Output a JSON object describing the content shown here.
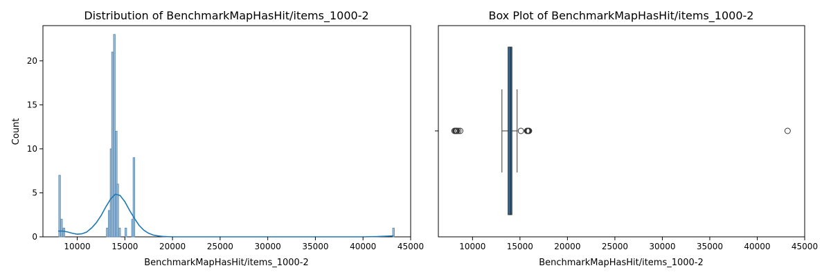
{
  "chart_data": [
    {
      "type": "bar",
      "title": "Distribution of BenchmarkMapHasHit/items_1000-2",
      "xlabel": "BenchmarkMapHasHit/items_1000-2",
      "ylabel": "Count",
      "xlim": [
        6400,
        45000
      ],
      "ylim": [
        0,
        24
      ],
      "xticks": [
        "10000",
        "15000",
        "20000",
        "25000",
        "30000",
        "35000",
        "40000",
        "45000"
      ],
      "yticks": [
        "0",
        "5",
        "10",
        "15",
        "20"
      ],
      "bar_color": "#9bbcd6",
      "bar_edge_color": "#5a88b0",
      "kde_color": "#1f77b4",
      "bars": [
        {
          "x": 8150,
          "count": 7
        },
        {
          "x": 8350,
          "count": 2
        },
        {
          "x": 8600,
          "count": 1
        },
        {
          "x": 13150,
          "count": 1
        },
        {
          "x": 13350,
          "count": 3
        },
        {
          "x": 13550,
          "count": 10
        },
        {
          "x": 13700,
          "count": 21
        },
        {
          "x": 13900,
          "count": 23
        },
        {
          "x": 14100,
          "count": 12
        },
        {
          "x": 14250,
          "count": 6
        },
        {
          "x": 14450,
          "count": 1
        },
        {
          "x": 15100,
          "count": 1
        },
        {
          "x": 15800,
          "count": 2
        },
        {
          "x": 15950,
          "count": 9
        },
        {
          "x": 43200,
          "count": 1
        }
      ],
      "bin_width": 180,
      "kde": [
        [
          8000,
          0.65
        ],
        [
          8500,
          0.65
        ],
        [
          9000,
          0.55
        ],
        [
          9500,
          0.4
        ],
        [
          10000,
          0.3
        ],
        [
          10500,
          0.35
        ],
        [
          11000,
          0.55
        ],
        [
          11500,
          1.0
        ],
        [
          12000,
          1.6
        ],
        [
          12500,
          2.4
        ],
        [
          13000,
          3.4
        ],
        [
          13500,
          4.3
        ],
        [
          14000,
          4.85
        ],
        [
          14500,
          4.7
        ],
        [
          15000,
          4.0
        ],
        [
          15500,
          3.0
        ],
        [
          16000,
          2.1
        ],
        [
          16500,
          1.3
        ],
        [
          17000,
          0.75
        ],
        [
          17500,
          0.4
        ],
        [
          18000,
          0.2
        ],
        [
          18500,
          0.1
        ],
        [
          19000,
          0.05
        ],
        [
          20000,
          0.0
        ],
        [
          30000,
          0.0
        ],
        [
          40000,
          0.0
        ],
        [
          41500,
          0.03
        ],
        [
          42500,
          0.08
        ],
        [
          43200,
          0.1
        ]
      ]
    },
    {
      "type": "box",
      "title": "Box Plot of BenchmarkMapHasHit/items_1000-2",
      "xlabel": "BenchmarkMapHasHit/items_1000-2",
      "xlim": [
        6400,
        45000
      ],
      "xticks": [
        "10000",
        "15000",
        "20000",
        "25000",
        "30000",
        "35000",
        "40000",
        "45000"
      ],
      "box_color": "#3a6c94",
      "box": {
        "whisker_low": 13100,
        "q1": 13750,
        "median": 14000,
        "q3": 14150,
        "whisker_high": 14700
      },
      "outliers": [
        8100,
        8200,
        8250,
        8300,
        8350,
        8500,
        8700,
        15100,
        15750,
        15800,
        15850,
        15900,
        15950,
        43200
      ]
    }
  ]
}
